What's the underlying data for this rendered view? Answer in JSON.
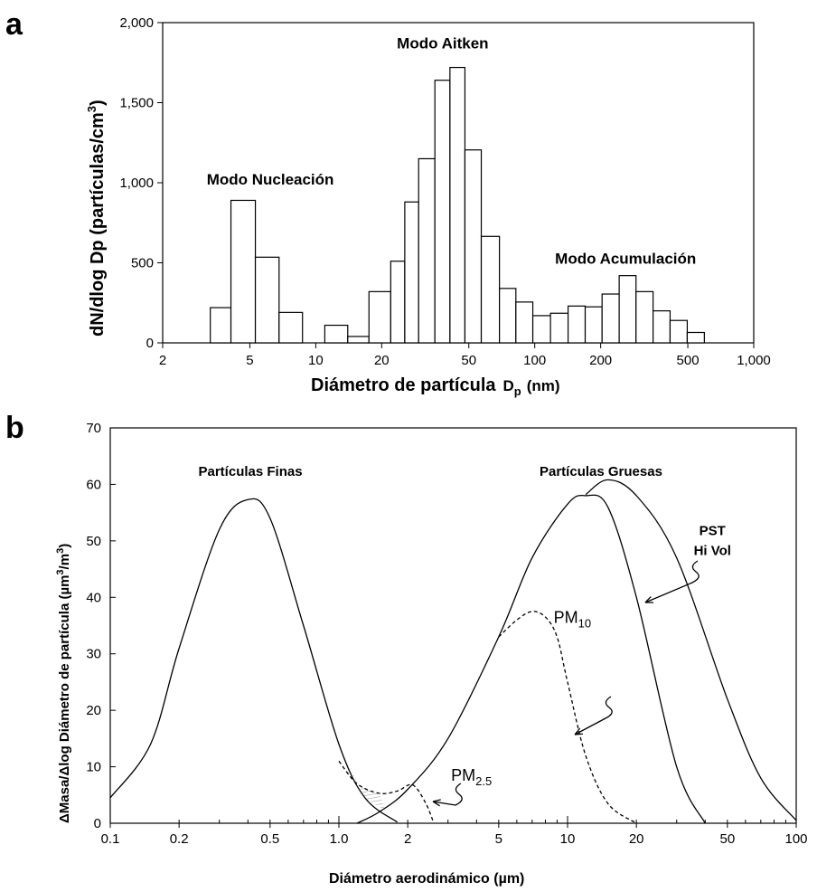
{
  "chart_data": [
    {
      "panel_label": "a",
      "type": "bar",
      "xlabel": "Diámetro de partícula",
      "xlabel_symbol": "D",
      "xlabel_symbol_sub": "p",
      "xlabel_unit": "(nm)",
      "ylabel": "dN/dlog Dp (partículas/cm",
      "ylabel_sup": "3",
      "ylabel_end": ")",
      "x_scale": "log",
      "xlim": [
        2,
        1000
      ],
      "ylim": [
        0,
        2000
      ],
      "x_ticks": [
        {
          "v": 2,
          "label": "2"
        },
        {
          "v": 5,
          "label": "5"
        },
        {
          "v": 10,
          "label": "10"
        },
        {
          "v": 20,
          "label": "20"
        },
        {
          "v": 50,
          "label": "50"
        },
        {
          "v": 100,
          "label": "100"
        },
        {
          "v": 200,
          "label": "200"
        },
        {
          "v": 500,
          "label": "500"
        },
        {
          "v": 1000,
          "label": "1,000"
        }
      ],
      "y_ticks": [
        {
          "v": 0,
          "label": "0"
        },
        {
          "v": 500,
          "label": "500"
        },
        {
          "v": 1000,
          "label": "1,000"
        },
        {
          "v": 1500,
          "label": "1,500"
        },
        {
          "v": 2000,
          "label": "2,000"
        }
      ],
      "bins": [
        {
          "x0": 3.3,
          "x1": 4.1,
          "value": 220
        },
        {
          "x0": 4.1,
          "x1": 5.3,
          "value": 890
        },
        {
          "x0": 5.3,
          "x1": 6.8,
          "value": 535
        },
        {
          "x0": 6.8,
          "x1": 8.7,
          "value": 190
        },
        {
          "x0": 11.0,
          "x1": 14.0,
          "value": 110
        },
        {
          "x0": 14.0,
          "x1": 17.5,
          "value": 40
        },
        {
          "x0": 17.5,
          "x1": 22.0,
          "value": 320
        },
        {
          "x0": 22.0,
          "x1": 25.5,
          "value": 510
        },
        {
          "x0": 25.5,
          "x1": 29.5,
          "value": 880
        },
        {
          "x0": 29.5,
          "x1": 35.0,
          "value": 1150
        },
        {
          "x0": 35.0,
          "x1": 41.0,
          "value": 1640
        },
        {
          "x0": 41.0,
          "x1": 48.0,
          "value": 1720
        },
        {
          "x0": 48.0,
          "x1": 57.0,
          "value": 1205
        },
        {
          "x0": 57.0,
          "x1": 69.0,
          "value": 665
        },
        {
          "x0": 69.0,
          "x1": 82.0,
          "value": 340
        },
        {
          "x0": 82.0,
          "x1": 98.0,
          "value": 255
        },
        {
          "x0": 98.0,
          "x1": 118.0,
          "value": 170
        },
        {
          "x0": 118.0,
          "x1": 142.0,
          "value": 185
        },
        {
          "x0": 142.0,
          "x1": 170.0,
          "value": 230
        },
        {
          "x0": 170.0,
          "x1": 203.0,
          "value": 225
        },
        {
          "x0": 203.0,
          "x1": 243.0,
          "value": 305
        },
        {
          "x0": 243.0,
          "x1": 290.0,
          "value": 420
        },
        {
          "x0": 290.0,
          "x1": 347.0,
          "value": 320
        },
        {
          "x0": 347.0,
          "x1": 415.0,
          "value": 200
        },
        {
          "x0": 415.0,
          "x1": 497.0,
          "value": 140
        },
        {
          "x0": 497.0,
          "x1": 595.0,
          "value": 65
        }
      ],
      "annotations": [
        {
          "text": "Modo Nucleación",
          "x": 6.2,
          "y": 990
        },
        {
          "text": "Modo Aitken",
          "x": 38,
          "y": 1840
        },
        {
          "text": "Modo Acumulación",
          "x": 260,
          "y": 495
        }
      ]
    },
    {
      "panel_label": "b",
      "type": "line",
      "xlabel": "Diámetro aerodinámico (µm)",
      "ylabel": "ΔMasa/Δlog Diámetro de partícula (µm",
      "ylabel_sup1": "3",
      "ylabel_mid": "/m",
      "ylabel_sup2": "3",
      "ylabel_end": ")",
      "x_scale": "log",
      "xlim": [
        0.1,
        100
      ],
      "ylim": [
        0,
        70
      ],
      "x_ticks": [
        {
          "v": 0.1,
          "label": "0.1"
        },
        {
          "v": 0.2,
          "label": "0.2"
        },
        {
          "v": 0.5,
          "label": "0.5"
        },
        {
          "v": 1.0,
          "label": "1.0"
        },
        {
          "v": 2,
          "label": "2"
        },
        {
          "v": 5,
          "label": "5"
        },
        {
          "v": 10,
          "label": "10"
        },
        {
          "v": 20,
          "label": "20"
        },
        {
          "v": 50,
          "label": "50"
        },
        {
          "v": 100,
          "label": "100"
        }
      ],
      "y_ticks": [
        {
          "v": 0,
          "label": "0"
        },
        {
          "v": 10,
          "label": "10"
        },
        {
          "v": 20,
          "label": "20"
        },
        {
          "v": 30,
          "label": "30"
        },
        {
          "v": 40,
          "label": "40"
        },
        {
          "v": 50,
          "label": "50"
        },
        {
          "v": 60,
          "label": "60"
        },
        {
          "v": 70,
          "label": "70"
        }
      ],
      "series": [
        {
          "style": "solid",
          "x": [
            0.1,
            0.15,
            0.2,
            0.3,
            0.4,
            0.5,
            0.7,
            1.0,
            1.3,
            1.8
          ],
          "y": [
            4.5,
            14,
            31,
            52,
            57.3,
            54,
            35,
            14,
            4.5,
            0.2
          ]
        },
        {
          "style": "solid",
          "x": [
            1.2,
            1.5,
            2.0,
            3.0,
            5.0,
            7.0,
            10.0,
            12.0,
            15.0,
            20.0,
            30.0,
            40.0
          ],
          "y": [
            0,
            2,
            6,
            15,
            33,
            47,
            56.5,
            58,
            56,
            40,
            10,
            0
          ]
        },
        {
          "style": "solid",
          "x": [
            12.0,
            15.0,
            20.0,
            30.0,
            50.0,
            70.0,
            100.0
          ],
          "y": [
            58.2,
            60.8,
            58,
            47,
            22,
            8,
            0.5
          ]
        },
        {
          "style": "dashed",
          "x": [
            5.0,
            6.0,
            7.0,
            8.0,
            9.0,
            10.0,
            12.0,
            15.0,
            20.0
          ],
          "y": [
            33,
            36,
            37.5,
            36.5,
            33,
            25,
            12,
            3.5,
            0
          ]
        },
        {
          "style": "dashed",
          "x": [
            1.0,
            1.2,
            1.5,
            1.8,
            2.1,
            2.4,
            2.6
          ],
          "y": [
            11,
            7,
            5.3,
            5.7,
            6.8,
            3.5,
            0
          ]
        }
      ],
      "annotations": [
        {
          "text": "Partículas Finas",
          "x": 0.41,
          "y": 61.5
        },
        {
          "text": "Partículas Gruesas",
          "x": 14,
          "y": 61.5
        },
        {
          "text": "PST",
          "x": 43,
          "y": 51
        },
        {
          "text": "Hi Vol",
          "x": 43,
          "y": 47.5
        },
        {
          "text": "PM",
          "sub": "10",
          "x": 10.5,
          "y": 35.5
        },
        {
          "text": "PM",
          "sub": "2.5",
          "x": 3.8,
          "y": 7.5
        }
      ]
    }
  ]
}
